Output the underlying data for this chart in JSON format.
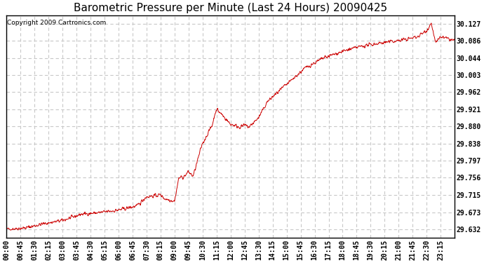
{
  "title": "Barometric Pressure per Minute (Last 24 Hours) 20090425",
  "copyright_text": "Copyright 2009 Cartronics.com",
  "line_color": "#cc0000",
  "background_color": "#ffffff",
  "plot_bg_color": "#ffffff",
  "grid_color": "#c8c8c8",
  "grid_style": "--",
  "yticks": [
    29.632,
    29.673,
    29.715,
    29.756,
    29.797,
    29.838,
    29.88,
    29.921,
    29.962,
    30.003,
    30.044,
    30.086,
    30.127
  ],
  "ylim": [
    29.612,
    30.147
  ],
  "xtick_labels": [
    "00:00",
    "00:45",
    "01:30",
    "02:15",
    "03:00",
    "03:45",
    "04:30",
    "05:15",
    "06:00",
    "06:45",
    "07:30",
    "08:15",
    "09:00",
    "09:45",
    "10:30",
    "11:15",
    "12:00",
    "12:45",
    "13:30",
    "14:15",
    "15:00",
    "15:45",
    "16:30",
    "17:15",
    "18:00",
    "18:45",
    "19:30",
    "20:15",
    "21:00",
    "21:45",
    "22:30",
    "23:15"
  ],
  "title_fontsize": 11,
  "tick_fontsize": 7,
  "copyright_fontsize": 6.5
}
